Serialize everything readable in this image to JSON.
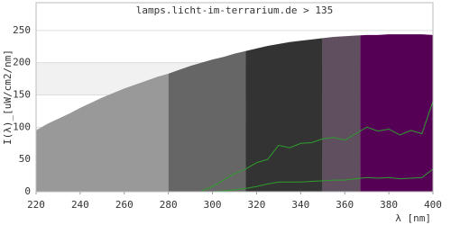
{
  "chart_data": {
    "type": "area",
    "title": "lamps.licht-im-terrarium.de > 135",
    "xlabel": "λ [nm]",
    "ylabel": "I(λ)_[uW/cm2/nm]",
    "x": [
      220,
      225,
      230,
      235,
      240,
      245,
      250,
      255,
      260,
      265,
      270,
      275,
      280,
      285,
      290,
      295,
      300,
      305,
      310,
      315,
      320,
      325,
      330,
      335,
      340,
      345,
      350,
      355,
      360,
      365,
      370,
      375,
      380,
      385,
      390,
      395,
      400
    ],
    "envelope": [
      95,
      105,
      113,
      121,
      130,
      138,
      146,
      153,
      160,
      166,
      172,
      178,
      183,
      189,
      195,
      200,
      205,
      209,
      214,
      218,
      222,
      226,
      229,
      232,
      234,
      236,
      238,
      240,
      241,
      242,
      243,
      243,
      244,
      244,
      244,
      244,
      243
    ],
    "regions": [
      {
        "from": 220,
        "to": 280,
        "color": "#999999"
      },
      {
        "from": 280,
        "to": 315,
        "color": "#666666"
      },
      {
        "from": 315,
        "to": 350,
        "color": "#333333"
      },
      {
        "from": 350,
        "to": 367,
        "color": "#5f4f5f"
      },
      {
        "from": 367,
        "to": 400,
        "color": "#550055"
      }
    ],
    "series": [
      {
        "color": "#2e9e2e",
        "values": [
          null,
          null,
          null,
          null,
          null,
          null,
          null,
          null,
          null,
          null,
          null,
          null,
          null,
          null,
          null,
          1,
          8,
          18,
          28,
          35,
          45,
          50,
          72,
          68,
          75,
          76,
          82,
          84,
          80,
          90,
          100,
          94,
          97,
          88,
          95,
          90,
          140
        ]
      },
      {
        "color": "#2e9e2e",
        "values": [
          null,
          null,
          null,
          null,
          null,
          null,
          null,
          null,
          null,
          null,
          null,
          null,
          null,
          null,
          null,
          null,
          0,
          1,
          3,
          5,
          8,
          12,
          15,
          15,
          15,
          16,
          17,
          18,
          18,
          20,
          22,
          21,
          22,
          20,
          21,
          22,
          35
        ]
      }
    ],
    "xlim": [
      220,
      400
    ],
    "ylim": [
      0,
      293
    ],
    "xticks": [
      220,
      240,
      260,
      280,
      300,
      320,
      340,
      360,
      380,
      400
    ],
    "yticks": [
      0,
      50,
      100,
      150,
      200,
      250
    ],
    "grid": true
  }
}
